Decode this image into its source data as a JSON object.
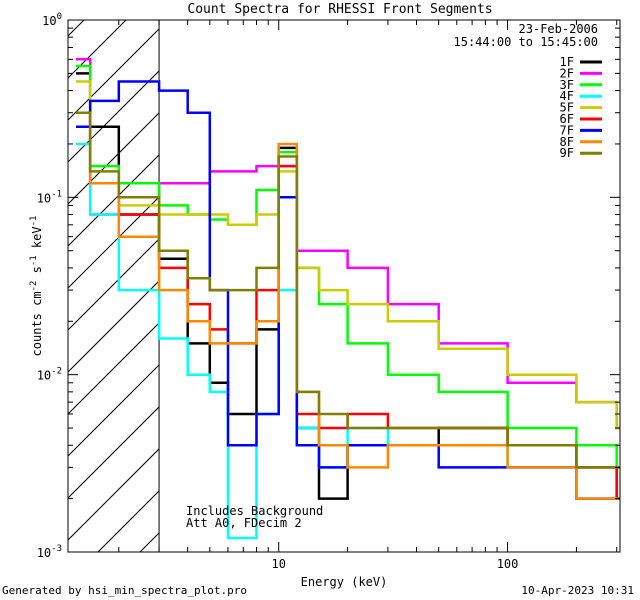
{
  "chart_data": {
    "type": "line",
    "title": "Count Spectra for RHESSI Front Segments",
    "xlabel": "Energy (keV)",
    "ylabel": "counts cm-2 s-1 keV-1",
    "xscale": "log",
    "yscale": "log",
    "xlim": [
      1.2,
      310
    ],
    "ylim": [
      0.001,
      1.0
    ],
    "x_ticks": [
      {
        "value": 10,
        "label": "10"
      },
      {
        "value": 100,
        "label": "100"
      }
    ],
    "y_ticks": [
      {
        "value": 1.0,
        "base": "10",
        "exp": "0"
      },
      {
        "value": 0.1,
        "base": "10",
        "exp": "-1"
      },
      {
        "value": 0.01,
        "base": "10",
        "exp": "-2"
      },
      {
        "value": 0.001,
        "base": "10",
        "exp": "-3"
      }
    ],
    "shaded_region": {
      "from": 1.2,
      "to": 3.0,
      "style": "hatched"
    },
    "date": "23-Feb-2006",
    "time_range": "15:44:00 to 15:45:00",
    "annotations": [
      "Includes Background",
      "Att A0, FDecim 2"
    ],
    "series": [
      {
        "name": "1F",
        "color": "#000000",
        "x": [
          1.3,
          1.5,
          2.0,
          3,
          4,
          5,
          6,
          8,
          10,
          12,
          15,
          20,
          30,
          50,
          100,
          200,
          300
        ],
        "values": [
          0.5,
          0.25,
          0.08,
          0.045,
          0.015,
          0.009,
          0.006,
          0.018,
          0.19,
          0.005,
          0.002,
          0.004,
          0.004,
          0.005,
          0.004,
          0.003,
          0.002
        ]
      },
      {
        "name": "2F",
        "color": "#ff00ff",
        "x": [
          1.3,
          1.5,
          2.0,
          3,
          4,
          5,
          6,
          8,
          10,
          12,
          15,
          20,
          30,
          50,
          100,
          200,
          300
        ],
        "values": [
          0.6,
          0.08,
          0.1,
          0.12,
          0.12,
          0.14,
          0.14,
          0.15,
          0.15,
          0.05,
          0.05,
          0.04,
          0.025,
          0.015,
          0.009,
          0.007,
          0.005
        ]
      },
      {
        "name": "3F",
        "color": "#00ff00",
        "x": [
          1.3,
          1.5,
          2.0,
          3,
          4,
          5,
          6,
          8,
          10,
          12,
          15,
          20,
          30,
          50,
          100,
          200,
          300
        ],
        "values": [
          0.55,
          0.15,
          0.12,
          0.09,
          0.08,
          0.075,
          0.07,
          0.11,
          0.18,
          0.04,
          0.025,
          0.015,
          0.01,
          0.008,
          0.005,
          0.004,
          0.003
        ]
      },
      {
        "name": "4F",
        "color": "#00ffff",
        "x": [
          1.3,
          1.5,
          2.0,
          3,
          4,
          5,
          6,
          8,
          10,
          12,
          15,
          20,
          30,
          50,
          100,
          200,
          300
        ],
        "values": [
          0.2,
          0.08,
          0.03,
          0.016,
          0.01,
          0.008,
          0.0012,
          0.006,
          0.03,
          0.005,
          0.003,
          0.005,
          0.004,
          0.004,
          0.003,
          0.002,
          0.002
        ]
      },
      {
        "name": "5F",
        "color": "#cccc00",
        "x": [
          1.3,
          1.5,
          2.0,
          3,
          4,
          5,
          6,
          8,
          10,
          12,
          15,
          20,
          30,
          50,
          100,
          200,
          300
        ],
        "values": [
          0.45,
          0.12,
          0.09,
          0.08,
          0.08,
          0.08,
          0.07,
          0.08,
          0.14,
          0.04,
          0.03,
          0.025,
          0.02,
          0.014,
          0.01,
          0.007,
          0.005
        ]
      },
      {
        "name": "6F",
        "color": "#ff0000",
        "x": [
          1.3,
          1.5,
          2.0,
          3,
          4,
          5,
          6,
          8,
          10,
          12,
          15,
          20,
          30,
          50,
          100,
          200,
          300
        ],
        "values": [
          0.3,
          0.12,
          0.08,
          0.04,
          0.025,
          0.018,
          0.015,
          0.03,
          0.15,
          0.006,
          0.005,
          0.006,
          0.005,
          0.005,
          0.004,
          0.003,
          0.002
        ]
      },
      {
        "name": "7F",
        "color": "#0000ff",
        "x": [
          1.3,
          1.5,
          2.0,
          3,
          4,
          5,
          6,
          8,
          10,
          12,
          15,
          20,
          30,
          50,
          100,
          200,
          300
        ],
        "values": [
          0.25,
          0.35,
          0.45,
          0.4,
          0.3,
          0.03,
          0.004,
          0.006,
          0.1,
          0.004,
          0.003,
          0.004,
          0.004,
          0.003,
          0.003,
          0.002,
          0.002
        ]
      },
      {
        "name": "8F",
        "color": "#ff8800",
        "x": [
          1.3,
          1.5,
          2.0,
          3,
          4,
          5,
          6,
          8,
          10,
          12,
          15,
          20,
          30,
          50,
          100,
          200,
          300
        ],
        "values": [
          0.3,
          0.12,
          0.06,
          0.03,
          0.02,
          0.015,
          0.015,
          0.02,
          0.2,
          0.008,
          0.004,
          0.003,
          0.004,
          0.004,
          0.003,
          0.002,
          0.002
        ]
      },
      {
        "name": "9F",
        "color": "#808000",
        "x": [
          1.3,
          1.5,
          2.0,
          3,
          4,
          5,
          6,
          8,
          10,
          12,
          15,
          20,
          30,
          50,
          100,
          200,
          300
        ],
        "values": [
          0.3,
          0.14,
          0.1,
          0.05,
          0.035,
          0.03,
          0.03,
          0.04,
          0.17,
          0.008,
          0.006,
          0.005,
          0.005,
          0.005,
          0.004,
          0.003,
          0.003
        ]
      }
    ]
  },
  "footer": {
    "generated": "Generated by hsi_min_spectra_plot.pro",
    "timestamp": "10-Apr-2023 10:31"
  }
}
